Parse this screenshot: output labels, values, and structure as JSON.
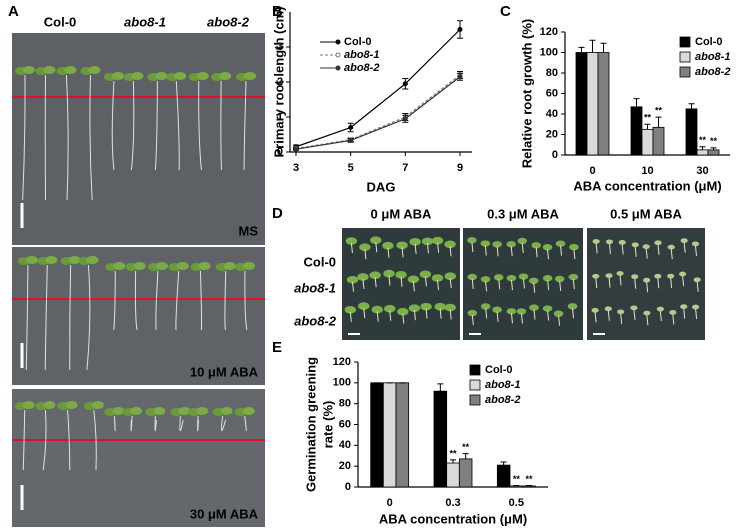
{
  "panel_letters": [
    "A",
    "B",
    "C",
    "D",
    "E"
  ],
  "photo_a": {
    "columns": [
      "Col-0",
      "abo8-1",
      "abo8-2"
    ],
    "conditions": [
      "MS",
      "10 μM ABA",
      "30 μM ABA"
    ]
  },
  "photo_d": {
    "columns": [
      "0 μM ABA",
      "0.3 μM ABA",
      "0.5 μM ABA"
    ],
    "rows": [
      "Col-0",
      "abo8-1",
      "abo8-2"
    ]
  },
  "chart_data": [
    {
      "type": "line",
      "x_label": "DAG",
      "y_label": "Primary root length (cm)",
      "x": [
        3,
        5,
        7,
        9
      ],
      "xlim": [
        3,
        9
      ],
      "xticks": [
        3,
        5,
        7,
        9
      ],
      "ylim": [
        0,
        4
      ],
      "yticks": [
        0,
        1,
        2,
        3
      ],
      "series": [
        {
          "name": "Col-0",
          "color": "#000000",
          "values": [
            0.15,
            0.7,
            1.95,
            3.5
          ],
          "errors": [
            0.05,
            0.12,
            0.15,
            0.25
          ]
        },
        {
          "name": "abo8-1",
          "color": "#777777",
          "values": [
            0.1,
            0.35,
            1.0,
            2.2
          ],
          "errors": [
            0.03,
            0.05,
            0.1,
            0.1
          ]
        },
        {
          "name": "abo8-2",
          "color": "#333333",
          "values": [
            0.08,
            0.33,
            0.95,
            2.15
          ],
          "errors": [
            0.03,
            0.05,
            0.1,
            0.1
          ]
        }
      ]
    },
    {
      "type": "bar",
      "x_label": "ABA concentration (μM)",
      "y_label": "Relative root growth (%)",
      "categories": [
        "0",
        "10",
        "30"
      ],
      "ylim": [
        0,
        120
      ],
      "yticks": [
        0,
        20,
        40,
        60,
        80,
        100,
        120
      ],
      "series": [
        {
          "name": "Col-0",
          "color": "#000000",
          "values": [
            100,
            47,
            45
          ],
          "errors": [
            5,
            8,
            5
          ],
          "labels": [
            null,
            null,
            null
          ]
        },
        {
          "name": "abo8-1",
          "color": "#d9d9d9",
          "values": [
            100,
            25,
            5
          ],
          "errors": [
            12,
            5,
            3
          ],
          "labels": [
            null,
            "**",
            "**"
          ]
        },
        {
          "name": "abo8-2",
          "color": "#7f7f7f",
          "values": [
            100,
            27,
            5
          ],
          "errors": [
            9,
            10,
            2
          ],
          "labels": [
            null,
            "**",
            "**"
          ]
        }
      ]
    },
    {
      "type": "bar",
      "x_label": "ABA concentration (μM)",
      "y_label": [
        "Germination greening",
        "rate (%)"
      ],
      "categories": [
        "0",
        "0.3",
        "0.5"
      ],
      "ylim": [
        0,
        120
      ],
      "yticks": [
        0,
        20,
        40,
        60,
        80,
        100,
        120
      ],
      "series": [
        {
          "name": "Col-0",
          "color": "#000000",
          "values": [
            100,
            92,
            21
          ],
          "errors": [
            0,
            7,
            3
          ],
          "labels": [
            null,
            null,
            null
          ]
        },
        {
          "name": "abo8-1",
          "color": "#d9d9d9",
          "values": [
            100,
            23,
            1
          ],
          "errors": [
            0,
            3,
            0.5
          ],
          "labels": [
            null,
            "**",
            "**"
          ]
        },
        {
          "name": "abo8-2",
          "color": "#7f7f7f",
          "values": [
            100,
            27,
            1
          ],
          "errors": [
            0,
            5,
            0.5
          ],
          "labels": [
            null,
            "**",
            "**"
          ]
        }
      ]
    }
  ]
}
